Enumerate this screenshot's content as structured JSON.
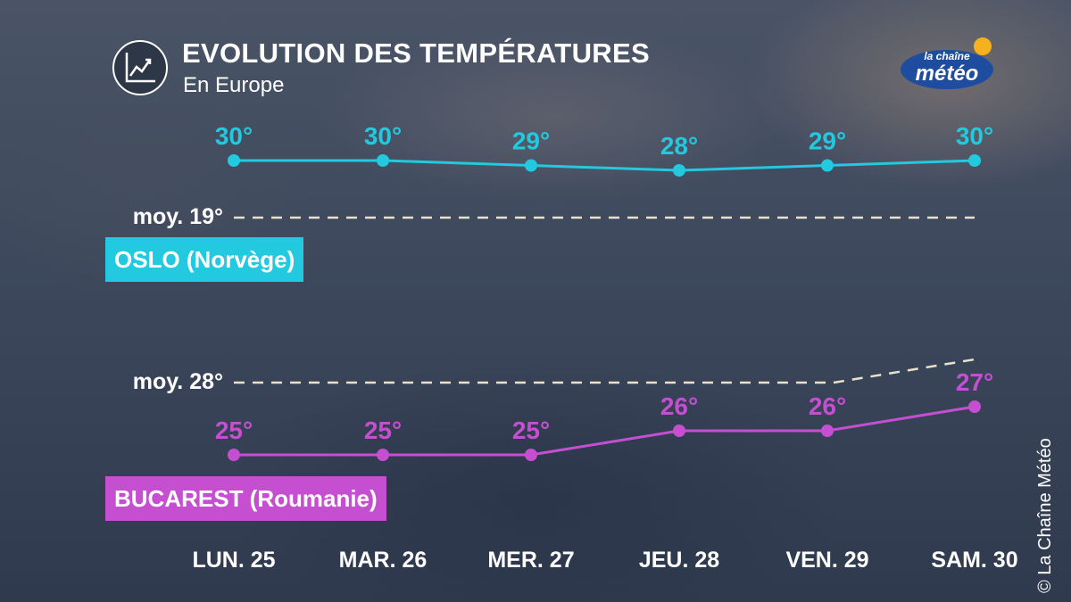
{
  "header": {
    "title": "EVOLUTION DES TEMPÉRATURES",
    "subtitle": "En Europe",
    "icon": "line-chart-icon"
  },
  "logo": {
    "line1": "la chaîne",
    "line2": "météo"
  },
  "copyright": "© La Chaîne Météo",
  "colors": {
    "oslo": "#22c9df",
    "bucarest": "#c54fd0",
    "average_line": "#e8e2cc"
  },
  "chart_data": {
    "type": "line",
    "categories": [
      "LUN. 25",
      "MAR. 26",
      "MER. 27",
      "JEU. 28",
      "VEN. 29",
      "SAM. 30"
    ],
    "series": [
      {
        "name": "OSLO (Norvège)",
        "values": [
          30,
          30,
          29,
          28,
          29,
          30
        ],
        "labels": [
          "30°",
          "30°",
          "29°",
          "28°",
          "29°",
          "30°"
        ],
        "average_label": "moy. 19°"
      },
      {
        "name": "BUCAREST (Roumanie)",
        "values": [
          25,
          25,
          25,
          26,
          26,
          27
        ],
        "labels": [
          "25°",
          "25°",
          "25°",
          "26°",
          "26°",
          "27°"
        ],
        "average_label": "moy. 28°"
      }
    ]
  }
}
